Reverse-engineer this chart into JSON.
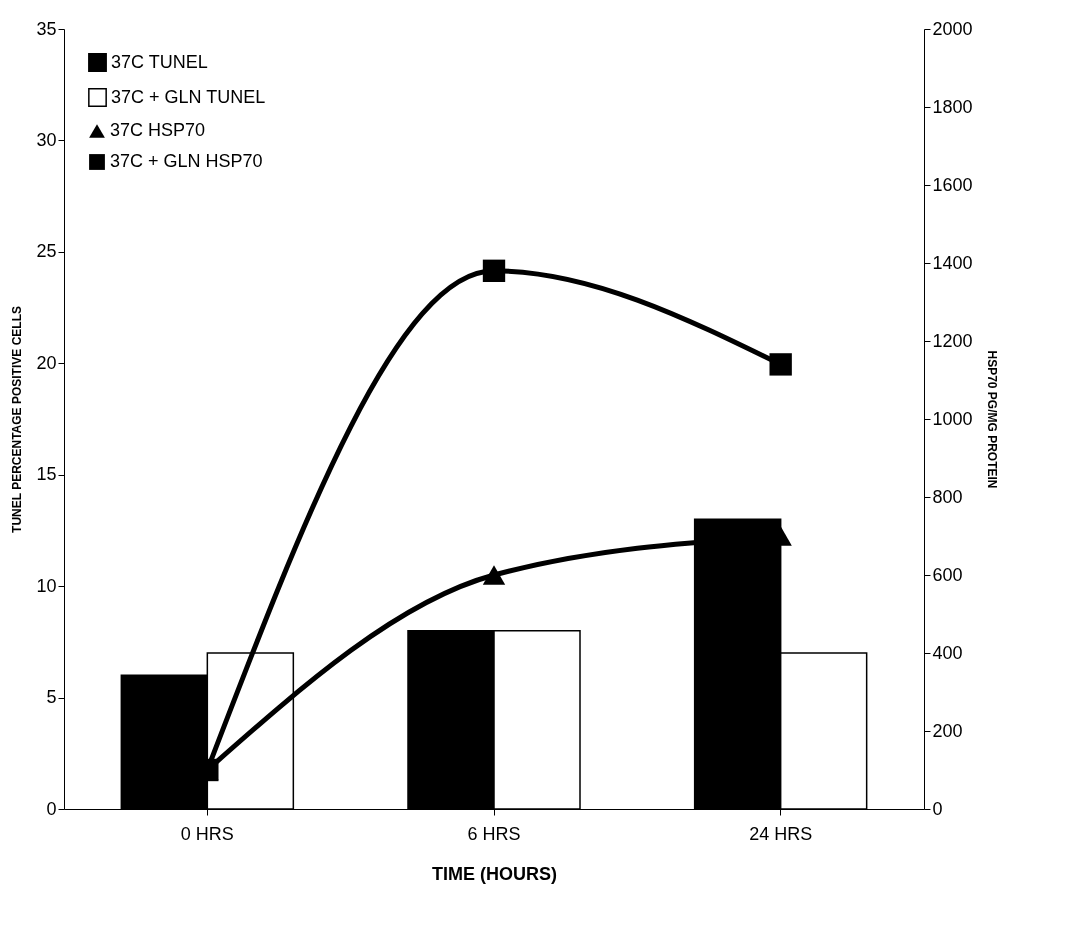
{
  "chart_data": {
    "type": "bar",
    "xlabel": "TIME (HOURS)",
    "ylabel": "TUNEL PERCENTAGE POSITIVE CELLS",
    "y2label": "HSP70 PG/MG PROTEIN",
    "categories": [
      "0 HRS",
      "6 HRS",
      "24 HRS"
    ],
    "series": [
      {
        "name": "37C TUNEL",
        "color": "#000000",
        "values": [
          6,
          8,
          13
        ]
      },
      {
        "name": "37C + GLN TUNEL",
        "color": "#ffffff",
        "values": [
          7,
          8,
          7
        ]
      },
      {
        "name": "37C HSP70",
        "type": "line",
        "axis": "y2",
        "marker": "triangle",
        "color": "#000000",
        "values": [
          100,
          600,
          700
        ]
      },
      {
        "name": "37C + GLN HSP70",
        "type": "line",
        "axis": "y2",
        "marker": "square",
        "color": "#000000",
        "values": [
          100,
          1380,
          1140
        ]
      }
    ],
    "ylim": [
      0,
      35
    ],
    "yticks": [
      0,
      5,
      10,
      15,
      20,
      25,
      30,
      35
    ],
    "y2lim": [
      0,
      2000
    ],
    "y2ticks": [
      0,
      200,
      400,
      600,
      800,
      1000,
      1200,
      1400,
      1600,
      1800,
      2000
    ],
    "legend": "top left"
  }
}
